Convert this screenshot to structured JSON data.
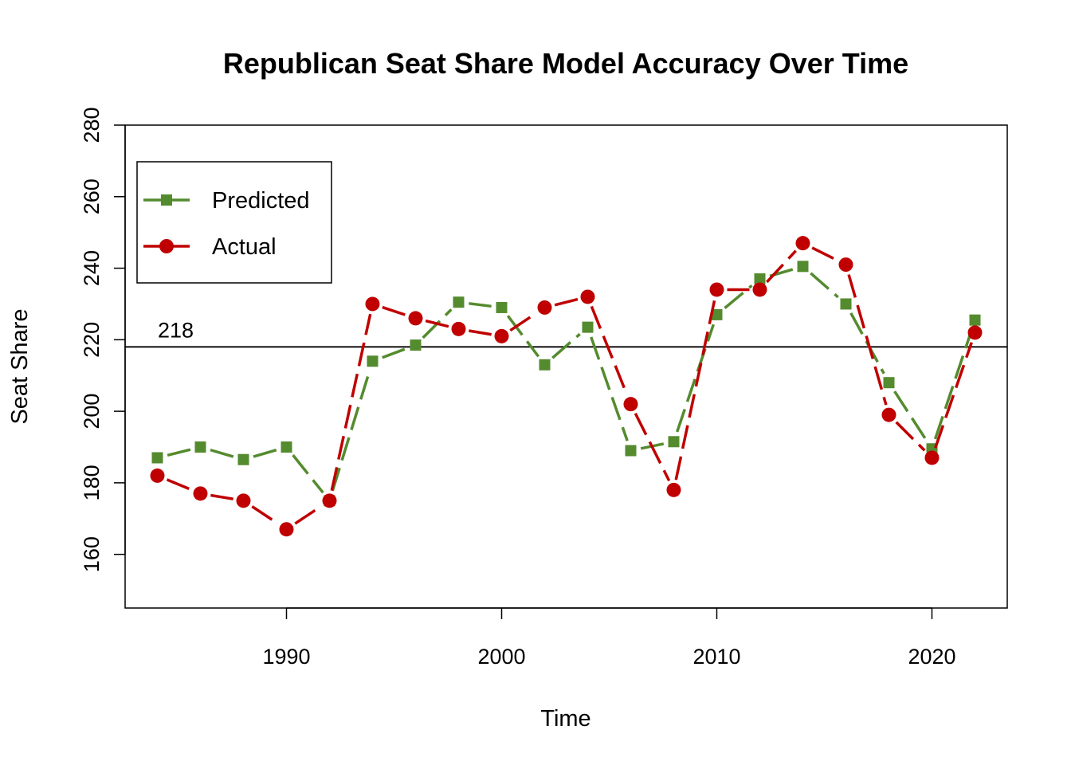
{
  "chart_data": {
    "type": "line",
    "title": "Republican Seat Share Model Accuracy Over Time",
    "xlabel": "Time",
    "ylabel": "Seat Share",
    "xlim": [
      1982.5,
      2023.5
    ],
    "ylim": [
      145,
      280
    ],
    "x_ticks": [
      1990,
      2000,
      2010,
      2020
    ],
    "y_ticks": [
      160,
      180,
      200,
      220,
      240,
      260,
      280
    ],
    "x": [
      1984,
      1986,
      1988,
      1990,
      1992,
      1994,
      1996,
      1998,
      2000,
      2002,
      2004,
      2006,
      2008,
      2010,
      2012,
      2014,
      2016,
      2018,
      2020,
      2022
    ],
    "series": [
      {
        "name": "Predicted",
        "color": "#548B2E",
        "marker": "square",
        "line": "dashed",
        "values": [
          187,
          190,
          186.5,
          190,
          175,
          214,
          218.5,
          230.5,
          229,
          213,
          223.5,
          189,
          191.5,
          227,
          237,
          240.5,
          230,
          208,
          189.5,
          225.5
        ]
      },
      {
        "name": "Actual",
        "color": "#C00000",
        "marker": "circle",
        "line": "dashed",
        "values": [
          182,
          177,
          175,
          167,
          175,
          230,
          226,
          223,
          221,
          229,
          232,
          202,
          178,
          234,
          234,
          247,
          241,
          199,
          187,
          222
        ]
      }
    ],
    "reference_line": {
      "y": 218,
      "label": "218",
      "color": "#000000"
    },
    "legend": {
      "position": "top-left"
    },
    "grid": false
  }
}
